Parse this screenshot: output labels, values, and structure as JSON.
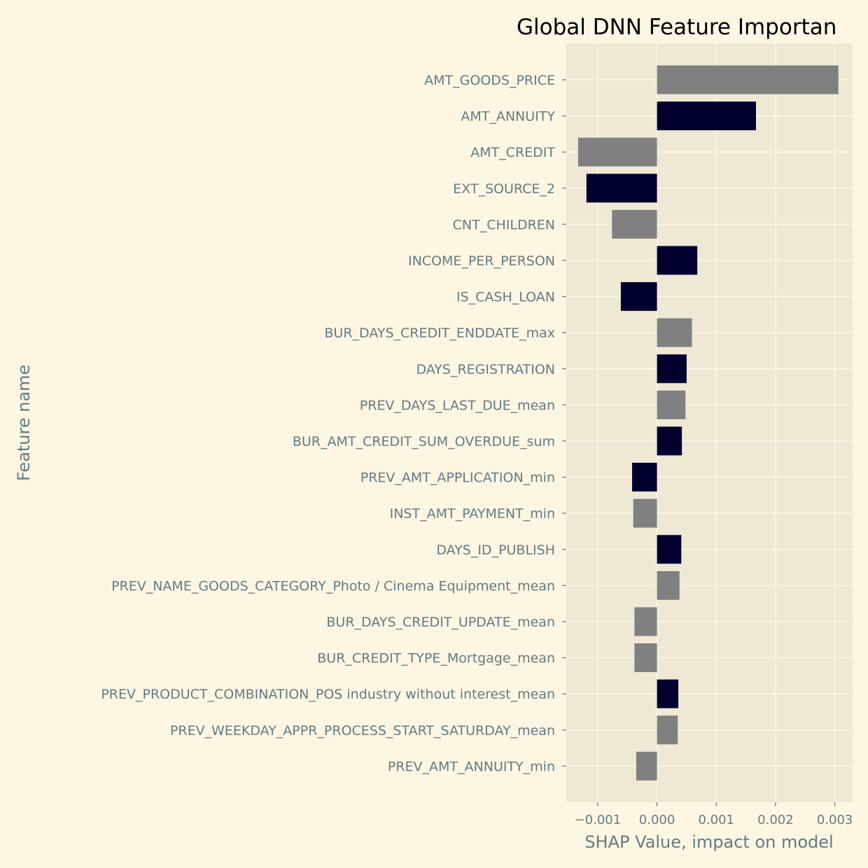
{
  "chart_data": {
    "type": "bar",
    "orientation": "horizontal",
    "title": "Global DNN Feature Importan",
    "xlabel": "SHAP Value, impact on model",
    "ylabel": "Feature name",
    "xlim": [
      -0.00153,
      0.0033
    ],
    "xticks": [
      -0.001,
      0.0,
      0.001,
      0.002,
      0.003
    ],
    "xtick_labels": [
      "−0.001",
      "0.000",
      "0.001",
      "0.002",
      "0.003"
    ],
    "grid": true,
    "categories": [
      "AMT_GOODS_PRICE",
      "AMT_ANNUITY",
      "AMT_CREDIT",
      "EXT_SOURCE_2",
      "CNT_CHILDREN",
      "INCOME_PER_PERSON",
      "IS_CASH_LOAN",
      "BUR_DAYS_CREDIT_ENDDATE_max",
      "DAYS_REGISTRATION",
      "PREV_DAYS_LAST_DUE_mean",
      "BUR_AMT_CREDIT_SUM_OVERDUE_sum",
      "PREV_AMT_APPLICATION_min",
      "INST_AMT_PAYMENT_min",
      "DAYS_ID_PUBLISH",
      "PREV_NAME_GOODS_CATEGORY_Photo / Cinema Equipment_mean",
      "BUR_DAYS_CREDIT_UPDATE_mean",
      "BUR_CREDIT_TYPE_Mortgage_mean",
      "PREV_PRODUCT_COMBINATION_POS industry without interest_mean",
      "PREV_WEEKDAY_APPR_PROCESS_START_SATURDAY_mean",
      "PREV_AMT_ANNUITY_min"
    ],
    "values": [
      0.00306,
      0.00167,
      -0.00133,
      -0.00119,
      -0.00076,
      0.00068,
      -0.00061,
      0.00059,
      0.0005,
      0.00048,
      0.00042,
      -0.00042,
      -0.0004,
      0.00041,
      0.00038,
      -0.00038,
      -0.00038,
      0.00036,
      0.00035,
      -0.00035
    ],
    "bar_colors": [
      "#808080",
      "#00002e",
      "#808080",
      "#00002e",
      "#808080",
      "#00002e",
      "#00002e",
      "#808080",
      "#00002e",
      "#808080",
      "#00002e",
      "#00002e",
      "#808080",
      "#00002e",
      "#808080",
      "#808080",
      "#808080",
      "#00002e",
      "#808080",
      "#808080"
    ]
  },
  "colors": {
    "page_background": "#fdf6e3",
    "plot_background": "#eee8d5",
    "grid": "#fdf6e3",
    "label_text": "#657b83",
    "title_text": "#000000",
    "bar_gray": "#808080",
    "bar_navy": "#00002e"
  }
}
